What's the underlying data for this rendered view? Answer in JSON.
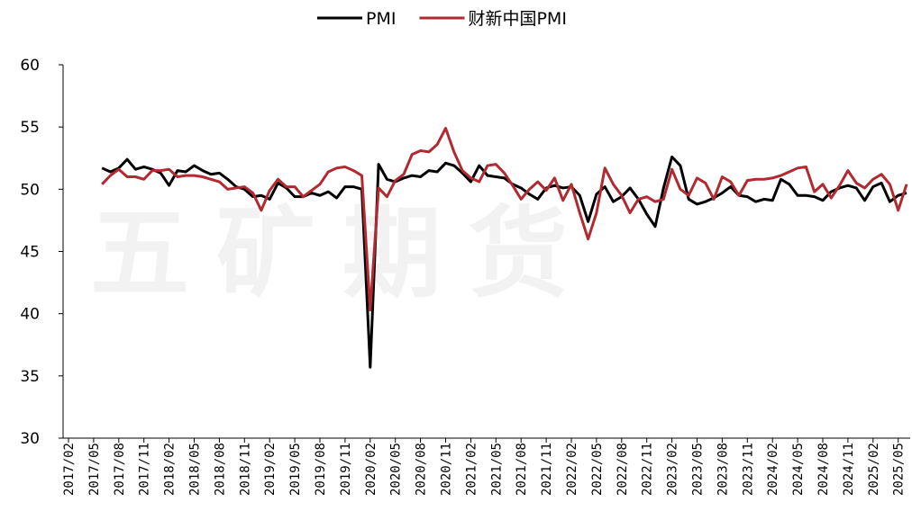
{
  "chart_data": {
    "type": "line",
    "watermark": "五矿期货",
    "categories": [
      "2017/02",
      null,
      null,
      "2017/05",
      null,
      null,
      "2017/08",
      null,
      null,
      "2017/11",
      null,
      null,
      "2018/02",
      null,
      null,
      "2018/05",
      null,
      null,
      "2018/08",
      null,
      null,
      "2018/11",
      null,
      null,
      "2019/02",
      null,
      null,
      "2019/05",
      null,
      null,
      "2019/08",
      null,
      null,
      "2019/11",
      null,
      null,
      "2020/02",
      null,
      null,
      "2020/05",
      null,
      null,
      "2020/08",
      null,
      null,
      "2020/11",
      null,
      null,
      "2021/02",
      null,
      null,
      "2021/05",
      null,
      null,
      "2021/08",
      null,
      null,
      "2021/11",
      null,
      null,
      "2022/02",
      null,
      null,
      "2022/05",
      null,
      null,
      "2022/08",
      null,
      null,
      "2022/11",
      null,
      null,
      "2023/02",
      null,
      null,
      "2023/05",
      null,
      null,
      "2023/08",
      null,
      null,
      "2023/11",
      null,
      null,
      "2024/02",
      null,
      null,
      "2024/05",
      null,
      null,
      "2024/08",
      null,
      null,
      "2024/11",
      null,
      null,
      "2025/02",
      null,
      null,
      "2025/05",
      null
    ],
    "series": [
      {
        "name": "PMI",
        "color": "#000000",
        "values": [
          null,
          null,
          null,
          null,
          51.7,
          51.4,
          51.7,
          52.4,
          51.6,
          51.8,
          51.6,
          51.3,
          50.3,
          51.5,
          51.4,
          51.9,
          51.5,
          51.2,
          51.3,
          50.8,
          50.2,
          50.0,
          49.4,
          49.5,
          49.2,
          50.5,
          50.1,
          49.4,
          49.4,
          49.7,
          49.5,
          49.8,
          49.3,
          50.2,
          50.2,
          50.0,
          35.7,
          52.0,
          50.8,
          50.6,
          50.9,
          51.1,
          51.0,
          51.5,
          51.4,
          52.1,
          51.9,
          51.3,
          50.6,
          51.9,
          51.1,
          51.0,
          50.9,
          50.4,
          50.1,
          49.6,
          49.2,
          50.1,
          50.3,
          50.1,
          50.2,
          49.5,
          47.4,
          49.6,
          50.2,
          49.0,
          49.4,
          50.1,
          49.2,
          48.0,
          47.0,
          50.1,
          52.6,
          51.9,
          49.2,
          48.8,
          49.0,
          49.3,
          49.7,
          50.2,
          49.5,
          49.4,
          49.0,
          49.2,
          49.1,
          50.8,
          50.4,
          49.5,
          49.5,
          49.4,
          49.1,
          49.8,
          50.1,
          50.3,
          50.1,
          49.1,
          50.2,
          50.5,
          49.0,
          49.5,
          49.7
        ]
      },
      {
        "name": "财新中国PMI",
        "color": "#b02a30",
        "values": [
          null,
          null,
          null,
          null,
          50.4,
          51.1,
          51.6,
          51.0,
          51.0,
          50.8,
          51.5,
          51.5,
          51.6,
          51.0,
          51.1,
          51.1,
          51.0,
          50.8,
          50.6,
          50.0,
          50.1,
          50.2,
          49.7,
          48.3,
          49.9,
          50.8,
          50.2,
          50.2,
          49.4,
          49.9,
          50.4,
          51.4,
          51.7,
          51.8,
          51.5,
          51.1,
          40.3,
          50.1,
          49.4,
          50.7,
          51.2,
          52.8,
          53.1,
          53.0,
          53.6,
          54.9,
          53.0,
          51.5,
          50.9,
          50.6,
          51.9,
          52.0,
          51.3,
          50.3,
          49.2,
          50.0,
          50.6,
          49.9,
          50.9,
          49.1,
          50.4,
          48.1,
          46.0,
          48.1,
          51.7,
          50.4,
          49.5,
          48.1,
          49.2,
          49.4,
          49.0,
          49.2,
          51.6,
          50.0,
          49.5,
          50.9,
          50.5,
          49.2,
          51.0,
          50.6,
          49.5,
          50.7,
          50.8,
          50.8,
          50.9,
          51.1,
          51.4,
          51.7,
          51.8,
          49.8,
          50.4,
          49.3,
          50.3,
          51.5,
          50.5,
          50.1,
          50.8,
          51.2,
          50.4,
          48.3,
          50.4
        ]
      }
    ],
    "ylim": [
      30,
      60
    ],
    "yticks": [
      30,
      35,
      40,
      45,
      50,
      55,
      60
    ],
    "grid": false,
    "legend": "top"
  }
}
